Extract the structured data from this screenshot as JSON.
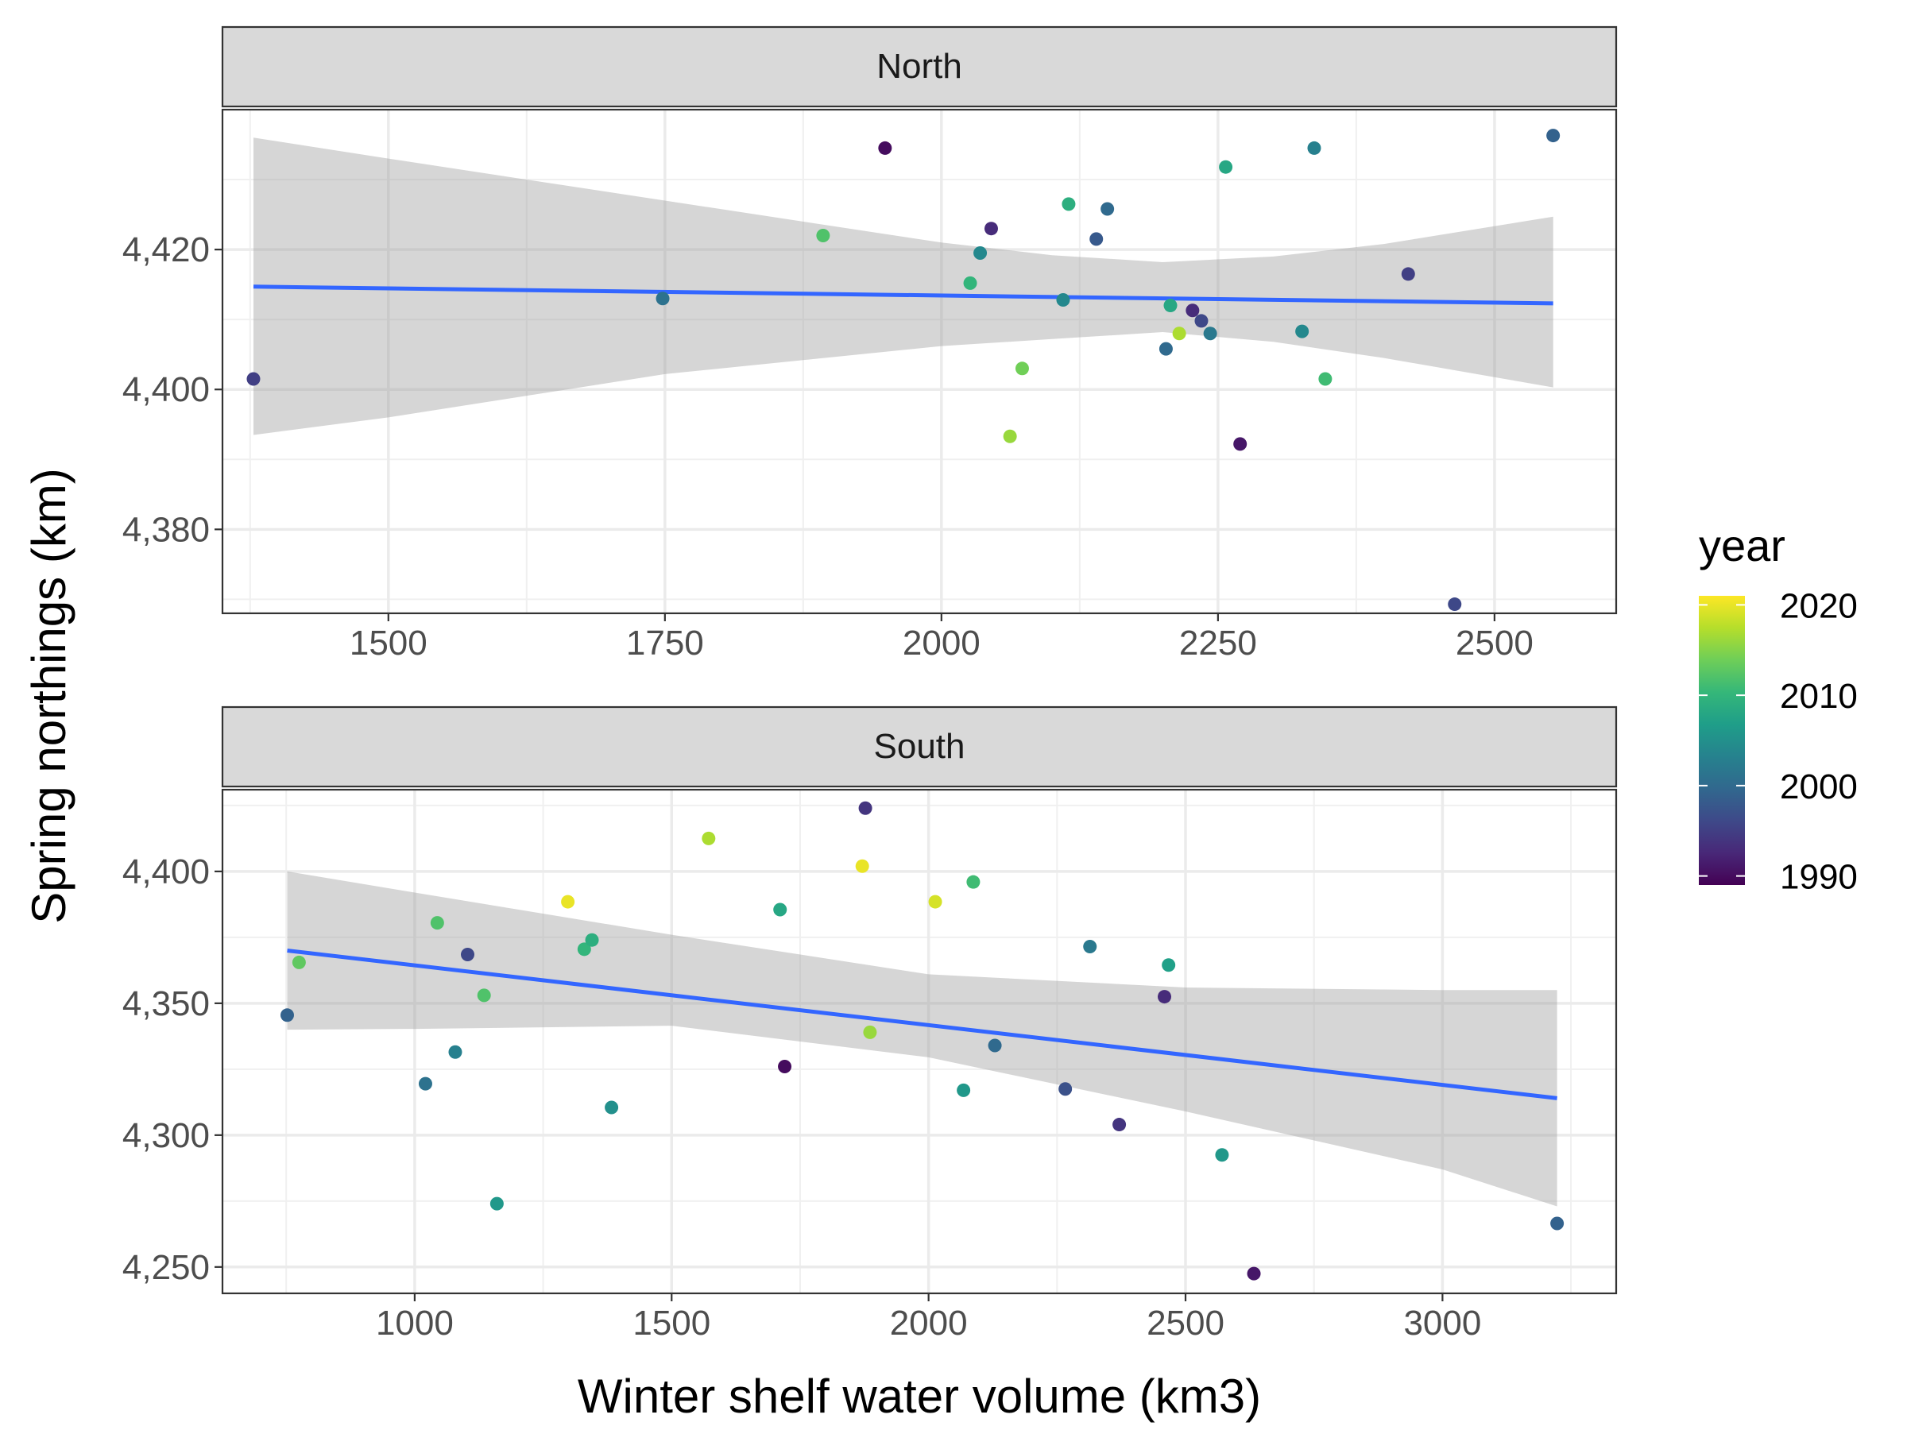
{
  "chart_data": {
    "type": "scatter",
    "xlabel": "Winter shelf water volume (km3)",
    "ylabel": "Spring northings (km)",
    "facets": [
      {
        "strip_label": "North",
        "xlim": [
          1350,
          2610
        ],
        "ylim": [
          4368,
          4440
        ],
        "x_ticks": [
          1500,
          1750,
          2000,
          2250,
          2500
        ],
        "x_tick_labels": [
          "1500",
          "1750",
          "2000",
          "2250",
          "2500"
        ],
        "y_ticks": [
          4380,
          4400,
          4420
        ],
        "y_tick_labels": [
          "4,380",
          "4,400",
          "4,420"
        ],
        "points": [
          {
            "x": 1378,
            "y": 4401.5,
            "year": 1995
          },
          {
            "x": 1748,
            "y": 4413.0,
            "year": 2001
          },
          {
            "x": 1893,
            "y": 4422.0,
            "year": 2012
          },
          {
            "x": 1949,
            "y": 4434.5,
            "year": 1990
          },
          {
            "x": 2026,
            "y": 4415.2,
            "year": 2010
          },
          {
            "x": 2035,
            "y": 4419.5,
            "year": 2004
          },
          {
            "x": 2045,
            "y": 4423.0,
            "year": 1993
          },
          {
            "x": 2062,
            "y": 4393.3,
            "year": 2016
          },
          {
            "x": 2073,
            "y": 4403.0,
            "year": 2014
          },
          {
            "x": 2110,
            "y": 4412.8,
            "year": 2004
          },
          {
            "x": 2115,
            "y": 4426.5,
            "year": 2009
          },
          {
            "x": 2140,
            "y": 4421.5,
            "year": 1998
          },
          {
            "x": 2150,
            "y": 4425.8,
            "year": 2000
          },
          {
            "x": 2203,
            "y": 4405.8,
            "year": 2000
          },
          {
            "x": 2207,
            "y": 4412.0,
            "year": 2008
          },
          {
            "x": 2215,
            "y": 4408.0,
            "year": 2017
          },
          {
            "x": 2227,
            "y": 4411.3,
            "year": 1993
          },
          {
            "x": 2235,
            "y": 4409.8,
            "year": 1996
          },
          {
            "x": 2243,
            "y": 4408.0,
            "year": 2002
          },
          {
            "x": 2257,
            "y": 4431.8,
            "year": 2008
          },
          {
            "x": 2270,
            "y": 4392.2,
            "year": 1991
          },
          {
            "x": 2326,
            "y": 4408.3,
            "year": 2004
          },
          {
            "x": 2337,
            "y": 4434.5,
            "year": 2003
          },
          {
            "x": 2347,
            "y": 4401.5,
            "year": 2011
          },
          {
            "x": 2422,
            "y": 4416.5,
            "year": 1995
          },
          {
            "x": 2464,
            "y": 4369.3,
            "year": 1996
          },
          {
            "x": 2553,
            "y": 4436.3,
            "year": 1999
          }
        ],
        "fit_line": {
          "x": [
            1378,
            2553
          ],
          "y": [
            4414.7,
            4412.3
          ]
        },
        "confidence_band": {
          "x": [
            1378,
            1500,
            1750,
            2000,
            2100,
            2200,
            2300,
            2400,
            2553
          ],
          "upper": [
            4436.0,
            4433.0,
            4427.0,
            4421.0,
            4419.2,
            4418.2,
            4419.0,
            4420.8,
            4424.7
          ],
          "lower": [
            4393.5,
            4396.0,
            4402.2,
            4406.2,
            4407.2,
            4408.2,
            4406.8,
            4404.5,
            4400.3
          ]
        }
      },
      {
        "strip_label": "South",
        "xlim": [
          626,
          3338
        ],
        "ylim": [
          4240,
          4431
        ],
        "x_ticks": [
          1000,
          1500,
          2000,
          2500,
          3000
        ],
        "x_tick_labels": [
          "1000",
          "1500",
          "2000",
          "2500",
          "3000"
        ],
        "y_ticks": [
          4250,
          4300,
          4350,
          4400
        ],
        "y_tick_labels": [
          "4,250",
          "4,300",
          "4,350",
          "4,400"
        ],
        "points": [
          {
            "x": 752,
            "y": 4345.5,
            "year": 1999
          },
          {
            "x": 775,
            "y": 4365.5,
            "year": 2013
          },
          {
            "x": 1021,
            "y": 4319.5,
            "year": 2001
          },
          {
            "x": 1044,
            "y": 4380.5,
            "year": 2012
          },
          {
            "x": 1079,
            "y": 4331.5,
            "year": 2003
          },
          {
            "x": 1103,
            "y": 4368.5,
            "year": 1996
          },
          {
            "x": 1135,
            "y": 4353.0,
            "year": 2012
          },
          {
            "x": 1160,
            "y": 4274.0,
            "year": 2006
          },
          {
            "x": 1298,
            "y": 4388.5,
            "year": 2020
          },
          {
            "x": 1330,
            "y": 4370.5,
            "year": 2010
          },
          {
            "x": 1345,
            "y": 4374.0,
            "year": 2009
          },
          {
            "x": 1383,
            "y": 4310.5,
            "year": 2005
          },
          {
            "x": 1572,
            "y": 4412.5,
            "year": 2017
          },
          {
            "x": 1711,
            "y": 4385.5,
            "year": 2008
          },
          {
            "x": 1720,
            "y": 4326.0,
            "year": 1990
          },
          {
            "x": 1871,
            "y": 4402.0,
            "year": 2020
          },
          {
            "x": 1877,
            "y": 4424.0,
            "year": 1994
          },
          {
            "x": 1886,
            "y": 4339.0,
            "year": 2016
          },
          {
            "x": 2013,
            "y": 4388.5,
            "year": 2019
          },
          {
            "x": 2087,
            "y": 4396.0,
            "year": 2011
          },
          {
            "x": 2068,
            "y": 4317.0,
            "year": 2006
          },
          {
            "x": 2129,
            "y": 4334.0,
            "year": 2000
          },
          {
            "x": 2266,
            "y": 4317.5,
            "year": 1997
          },
          {
            "x": 2314,
            "y": 4371.5,
            "year": 2002
          },
          {
            "x": 2371,
            "y": 4304.0,
            "year": 1994
          },
          {
            "x": 2459,
            "y": 4352.5,
            "year": 1993
          },
          {
            "x": 2467,
            "y": 4364.5,
            "year": 2007
          },
          {
            "x": 2571,
            "y": 4292.5,
            "year": 2006
          },
          {
            "x": 2633,
            "y": 4247.5,
            "year": 1991
          },
          {
            "x": 3223,
            "y": 4266.5,
            "year": 1999
          }
        ],
        "fit_line": {
          "x": [
            752,
            3223
          ],
          "y": [
            4370.0,
            4314.0
          ]
        },
        "confidence_band": {
          "x": [
            752,
            1000,
            1500,
            2000,
            2500,
            3000,
            3223
          ],
          "upper": [
            4400.0,
            4392.0,
            4376.0,
            4361.0,
            4356.0,
            4355.0,
            4355.0
          ],
          "lower": [
            4340.0,
            4340.3,
            4341.5,
            4329.5,
            4309.0,
            4287.0,
            4273.0
          ]
        }
      }
    ],
    "color_scale": {
      "title": "year",
      "type": "viridis",
      "min": 1989,
      "max": 2021,
      "breaks": [
        1990,
        2000,
        2010,
        2020
      ],
      "break_labels": [
        "1990",
        "2000",
        "2010",
        "2020"
      ],
      "stops": [
        "#440154",
        "#482878",
        "#3e4989",
        "#31688e",
        "#26828e",
        "#1f9e89",
        "#35b779",
        "#6ece58",
        "#b5de2b",
        "#fde725"
      ]
    },
    "fit_line_color": "#3366ff",
    "band_color": "#999999",
    "grid": true,
    "legend_position": "right"
  }
}
